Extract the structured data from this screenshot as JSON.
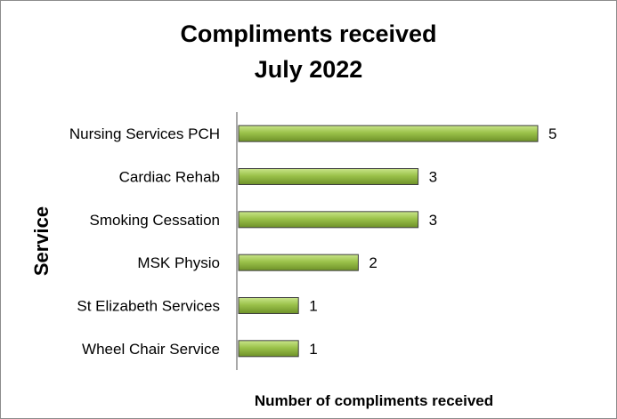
{
  "chart_data": {
    "type": "bar",
    "orientation": "horizontal",
    "title_lines": [
      "Compliments received",
      "July 2022"
    ],
    "xlabel": "Number of compliments received",
    "ylabel": "Service",
    "categories": [
      "Nursing Services PCH",
      "Cardiac Rehab",
      "Smoking Cessation",
      "MSK Physio",
      "St Elizabeth Services",
      "Wheel Chair Service"
    ],
    "values": [
      5,
      3,
      3,
      2,
      1,
      1
    ],
    "data_labels": [
      "5",
      "3",
      "3",
      "2",
      "1",
      "1"
    ],
    "xlim": [
      0,
      5
    ],
    "grid": false,
    "legend": "none",
    "colors": {
      "bar_fill_light": "#c9e58a",
      "bar_fill_mid": "#9bc24a",
      "bar_fill_dark": "#6e9128",
      "bar_stroke": "#3f3f3f",
      "axis": "#8c8c8c",
      "frame": "#8c8c8c"
    }
  }
}
